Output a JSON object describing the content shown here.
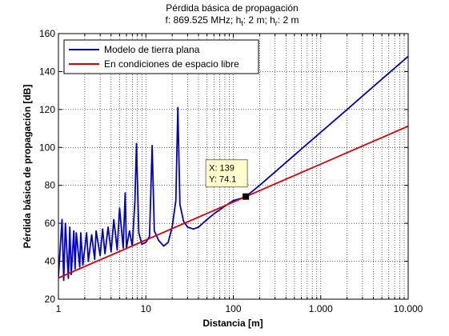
{
  "chart_data": {
    "type": "line",
    "title": "Pérdida básica de propagación",
    "subtitle": {
      "prefix": "f: 869.525 MHz; h",
      "sub1": "t",
      "mid": ": 2 m; h",
      "sub2": "r",
      "suffix": ": 2 m"
    },
    "xlabel": "Distancia [m]",
    "ylabel": "Pérdida básica de propagación [dB]",
    "xscale": "log",
    "xlim": [
      1,
      10000
    ],
    "ylim": [
      20,
      160
    ],
    "grid": true,
    "legend_position": "top-left",
    "x_ticks": [
      1,
      10,
      100,
      1000,
      10000
    ],
    "x_tick_labels": [
      "1",
      "10",
      "100",
      "1.000",
      "10.000"
    ],
    "y_ticks": [
      20,
      40,
      60,
      80,
      100,
      120,
      140,
      160
    ],
    "y_tick_labels": [
      "20",
      "40",
      "60",
      "80",
      "100",
      "120",
      "140",
      "160"
    ],
    "series": [
      {
        "name": "Modelo de tierra plana",
        "color": "#0000cc",
        "x": [
          1.0,
          1.1,
          1.15,
          1.2,
          1.3,
          1.35,
          1.4,
          1.5,
          1.55,
          1.6,
          1.75,
          1.8,
          1.9,
          2.1,
          2.2,
          2.4,
          2.6,
          2.7,
          3.0,
          3.2,
          3.4,
          3.7,
          4.0,
          4.3,
          4.7,
          5.0,
          5.5,
          5.8,
          6.0,
          6.5,
          7.0,
          7.5,
          7.8,
          8.3,
          9.0,
          10.0,
          11.0,
          11.8,
          12.5,
          14.0,
          16.0,
          18.0,
          20.0,
          22.0,
          23.2,
          24.5,
          27.0,
          30.0,
          35.0,
          40.0,
          50.0,
          60.0,
          80.0,
          100.0,
          120.0,
          139.0,
          200.0,
          500.0,
          1000.0,
          2000.0,
          5000.0,
          10000.0
        ],
        "y": [
          32,
          62,
          30,
          60,
          31,
          58,
          33,
          56,
          36,
          55,
          37,
          55,
          38,
          55,
          40,
          54,
          41,
          56,
          43,
          57,
          44,
          58,
          45,
          62,
          46,
          68,
          47,
          76,
          47,
          56,
          48,
          72,
          102,
          55,
          49,
          50,
          53,
          101,
          56,
          51,
          48,
          50,
          58,
          72,
          121,
          70,
          61,
          58,
          57,
          58,
          62,
          65,
          69,
          72,
          73,
          74.1,
          80,
          96,
          108,
          120,
          136,
          148
        ]
      },
      {
        "name": "En condiciones de espacio libre",
        "color": "#e00000",
        "x": [
          1,
          10000
        ],
        "y": [
          31.2,
          111.2
        ]
      }
    ],
    "datatip": {
      "x_label": "X: 139",
      "y_label": "Y: 74.1",
      "x": 139,
      "y": 74.1
    }
  }
}
